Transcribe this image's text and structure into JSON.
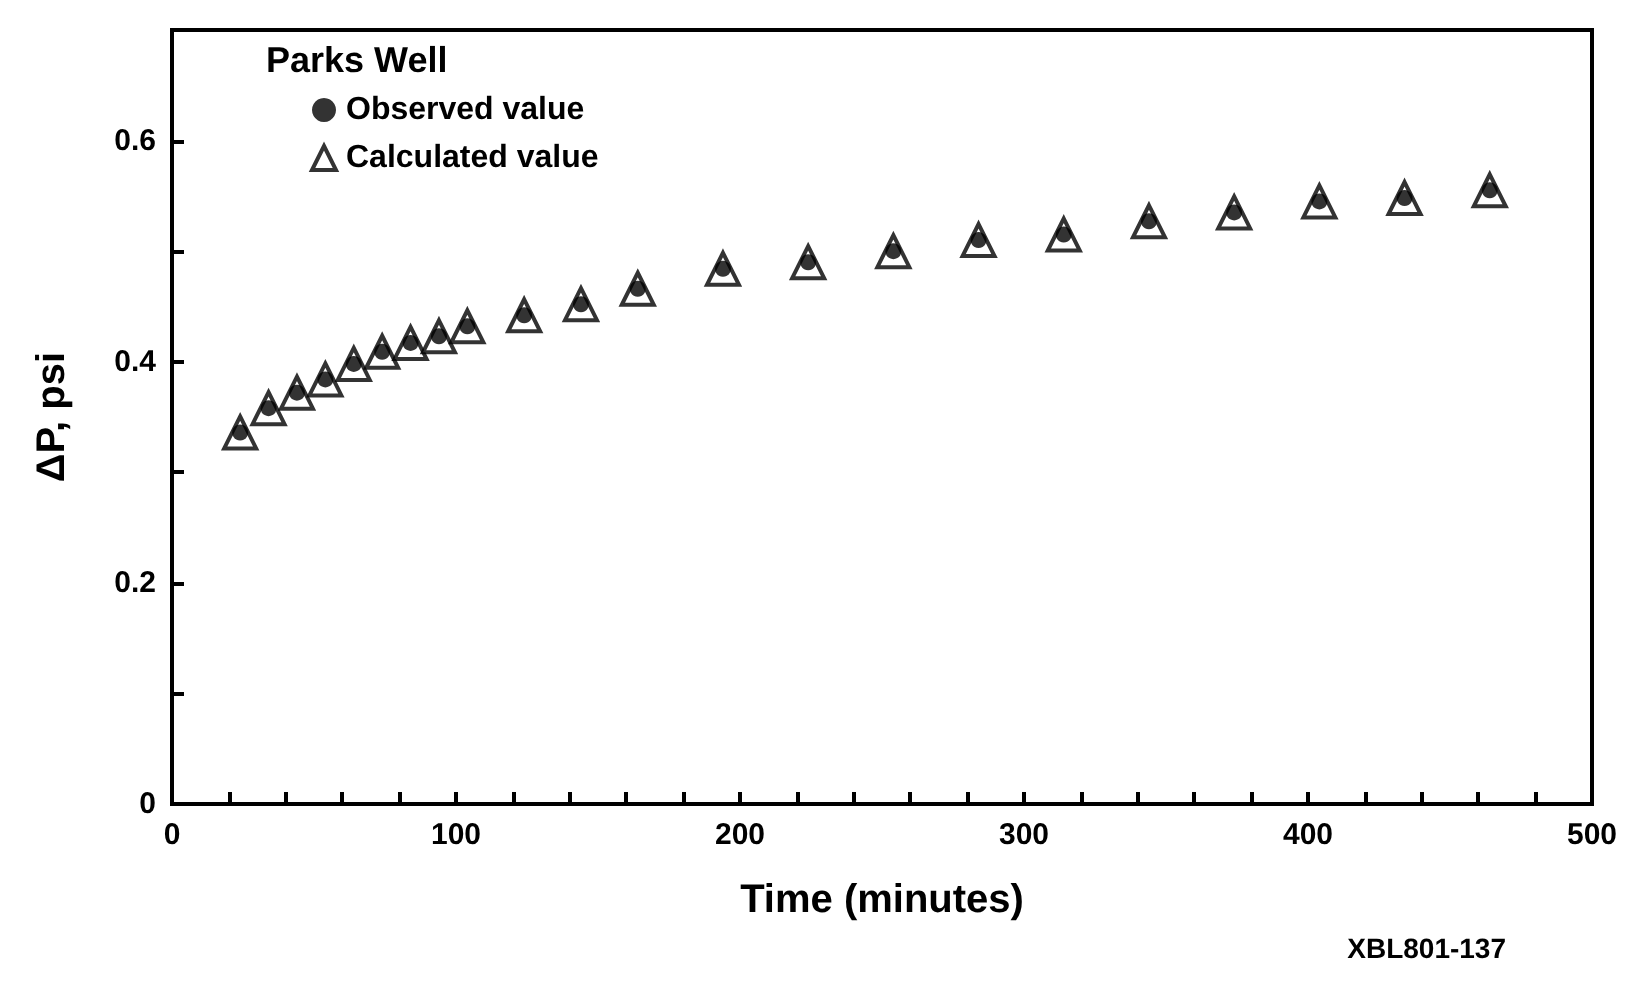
{
  "chart_data": {
    "type": "scatter",
    "xlabel": "Time (minutes)",
    "ylabel": "ΔP, psi",
    "legend_title": "Parks Well",
    "legend": "top left",
    "grid": false,
    "x": [
      24,
      34,
      44,
      54,
      64,
      74,
      84,
      94,
      104,
      124,
      144,
      164,
      194,
      224,
      254,
      284,
      314,
      344,
      374,
      404,
      434,
      464
    ],
    "series": [
      {
        "name": "Calculated value",
        "color": "#000000",
        "marker": "triangle",
        "values": [
          0.336,
          0.358,
          0.372,
          0.384,
          0.398,
          0.409,
          0.417,
          0.423,
          0.432,
          0.442,
          0.452,
          0.466,
          0.484,
          0.49,
          0.5,
          0.51,
          0.515,
          0.527,
          0.535,
          0.545,
          0.548,
          0.555
        ]
      },
      {
        "name": "Observed value",
        "color": "#000000",
        "marker": "circle",
        "values": [
          0.336,
          0.358,
          0.372,
          0.384,
          0.398,
          0.409,
          0.417,
          0.423,
          0.432,
          0.442,
          0.452,
          0.466,
          0.484,
          0.49,
          0.5,
          0.51,
          0.515,
          0.527,
          0.535,
          0.545,
          0.548,
          0.555
        ]
      }
    ],
    "xlim": [
      0,
      500
    ],
    "xticks": [
      0,
      {
        "value": 20,
        "label": null
      },
      {
        "value": 40,
        "label": null
      },
      {
        "value": 60,
        "label": null
      },
      {
        "value": 80,
        "label": null
      },
      100,
      {
        "value": 120,
        "label": null
      },
      {
        "value": 140,
        "label": null
      },
      {
        "value": 160,
        "label": null
      },
      {
        "value": 180,
        "label": null
      },
      200,
      {
        "value": 220,
        "label": null
      },
      {
        "value": 240,
        "label": null
      },
      {
        "value": 260,
        "label": null
      },
      {
        "value": 280,
        "label": null
      },
      300,
      {
        "value": 320,
        "label": null
      },
      {
        "value": 340,
        "label": null
      },
      {
        "value": 360,
        "label": null
      },
      {
        "value": 380,
        "label": null
      },
      400,
      {
        "value": 420,
        "label": null
      },
      {
        "value": 440,
        "label": null
      },
      {
        "value": 460,
        "label": null
      },
      {
        "value": 480,
        "label": null
      },
      500
    ],
    "ylim": [
      0,
      0.7
    ],
    "yticks": [
      {
        "value": 0,
        "label": "0"
      },
      {
        "value": 0.1,
        "label": null
      },
      0.2,
      {
        "value": 0.3,
        "label": null
      },
      0.4,
      {
        "value": 0.5,
        "label": null
      },
      0.6
    ],
    "annotations": [
      "XBL801-137"
    ]
  }
}
